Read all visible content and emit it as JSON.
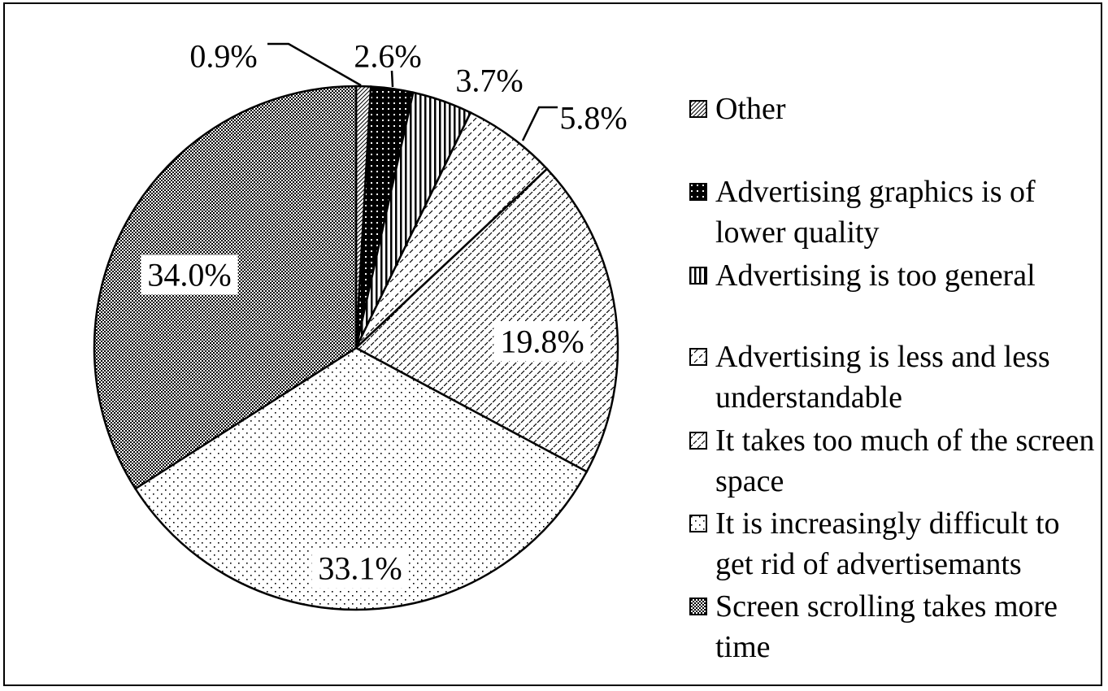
{
  "chart_data": {
    "type": "pie",
    "slices": [
      {
        "label": "Other",
        "value": 0.9,
        "display": "0.9%",
        "pattern": "diag-fine"
      },
      {
        "label": "Advertising graphics is of lower quality",
        "value": 2.6,
        "display": "2.6%",
        "pattern": "black-dots"
      },
      {
        "label": "Advertising is too general",
        "value": 3.7,
        "display": "3.7%",
        "pattern": "vertical"
      },
      {
        "label": "Advertising is less and less understandable",
        "value": 5.8,
        "display": "5.8%",
        "pattern": "diag-dashed"
      },
      {
        "label": "It takes too much of the screen space",
        "value": 19.8,
        "display": "19.8%",
        "pattern": "diag-dashed-2"
      },
      {
        "label": "It is increasingly difficult to get rid of advertisemants",
        "value": 33.1,
        "display": "33.1%",
        "pattern": "dots"
      },
      {
        "label": "Screen scrolling takes more time",
        "value": 34.0,
        "display": "34.0%",
        "pattern": "checker"
      }
    ],
    "start_angle_deg": 0,
    "direction": "clockwise",
    "legend_position": "right",
    "colors": {
      "stroke": "#000000",
      "background": "#ffffff"
    }
  },
  "legend": {
    "items": [
      {
        "label": "Other"
      },
      {
        "label": "Advertising graphics is of lower quality"
      },
      {
        "label": "Advertising is too general"
      },
      {
        "label": "Advertising is less and less understandable"
      },
      {
        "label": "It takes too much of the screen space"
      },
      {
        "label": "It is increasingly difficult to get rid of advertisemants"
      },
      {
        "label": "Screen scrolling takes more time"
      }
    ]
  }
}
